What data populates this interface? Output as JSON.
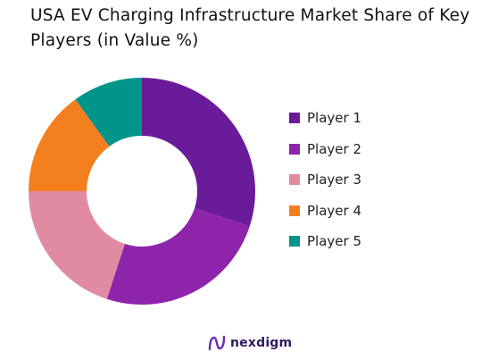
{
  "chart_data": {
    "type": "pie",
    "title": "USA EV Charging Infrastructure Market Share of Key Players (in Value %)",
    "donut": true,
    "series": [
      {
        "name": "Player 1",
        "value": 30,
        "color": "#6a1b9a"
      },
      {
        "name": "Player 2",
        "value": 25,
        "color": "#8e24aa"
      },
      {
        "name": "Player 3",
        "value": 20,
        "color": "#e08ba2"
      },
      {
        "name": "Player 4",
        "value": 15,
        "color": "#f37f1e"
      },
      {
        "name": "Player 5",
        "value": 10,
        "color": "#00948a"
      }
    ],
    "legend_position": "right"
  },
  "brand": {
    "name": "nexdigm",
    "color": "#6b2fb3"
  }
}
